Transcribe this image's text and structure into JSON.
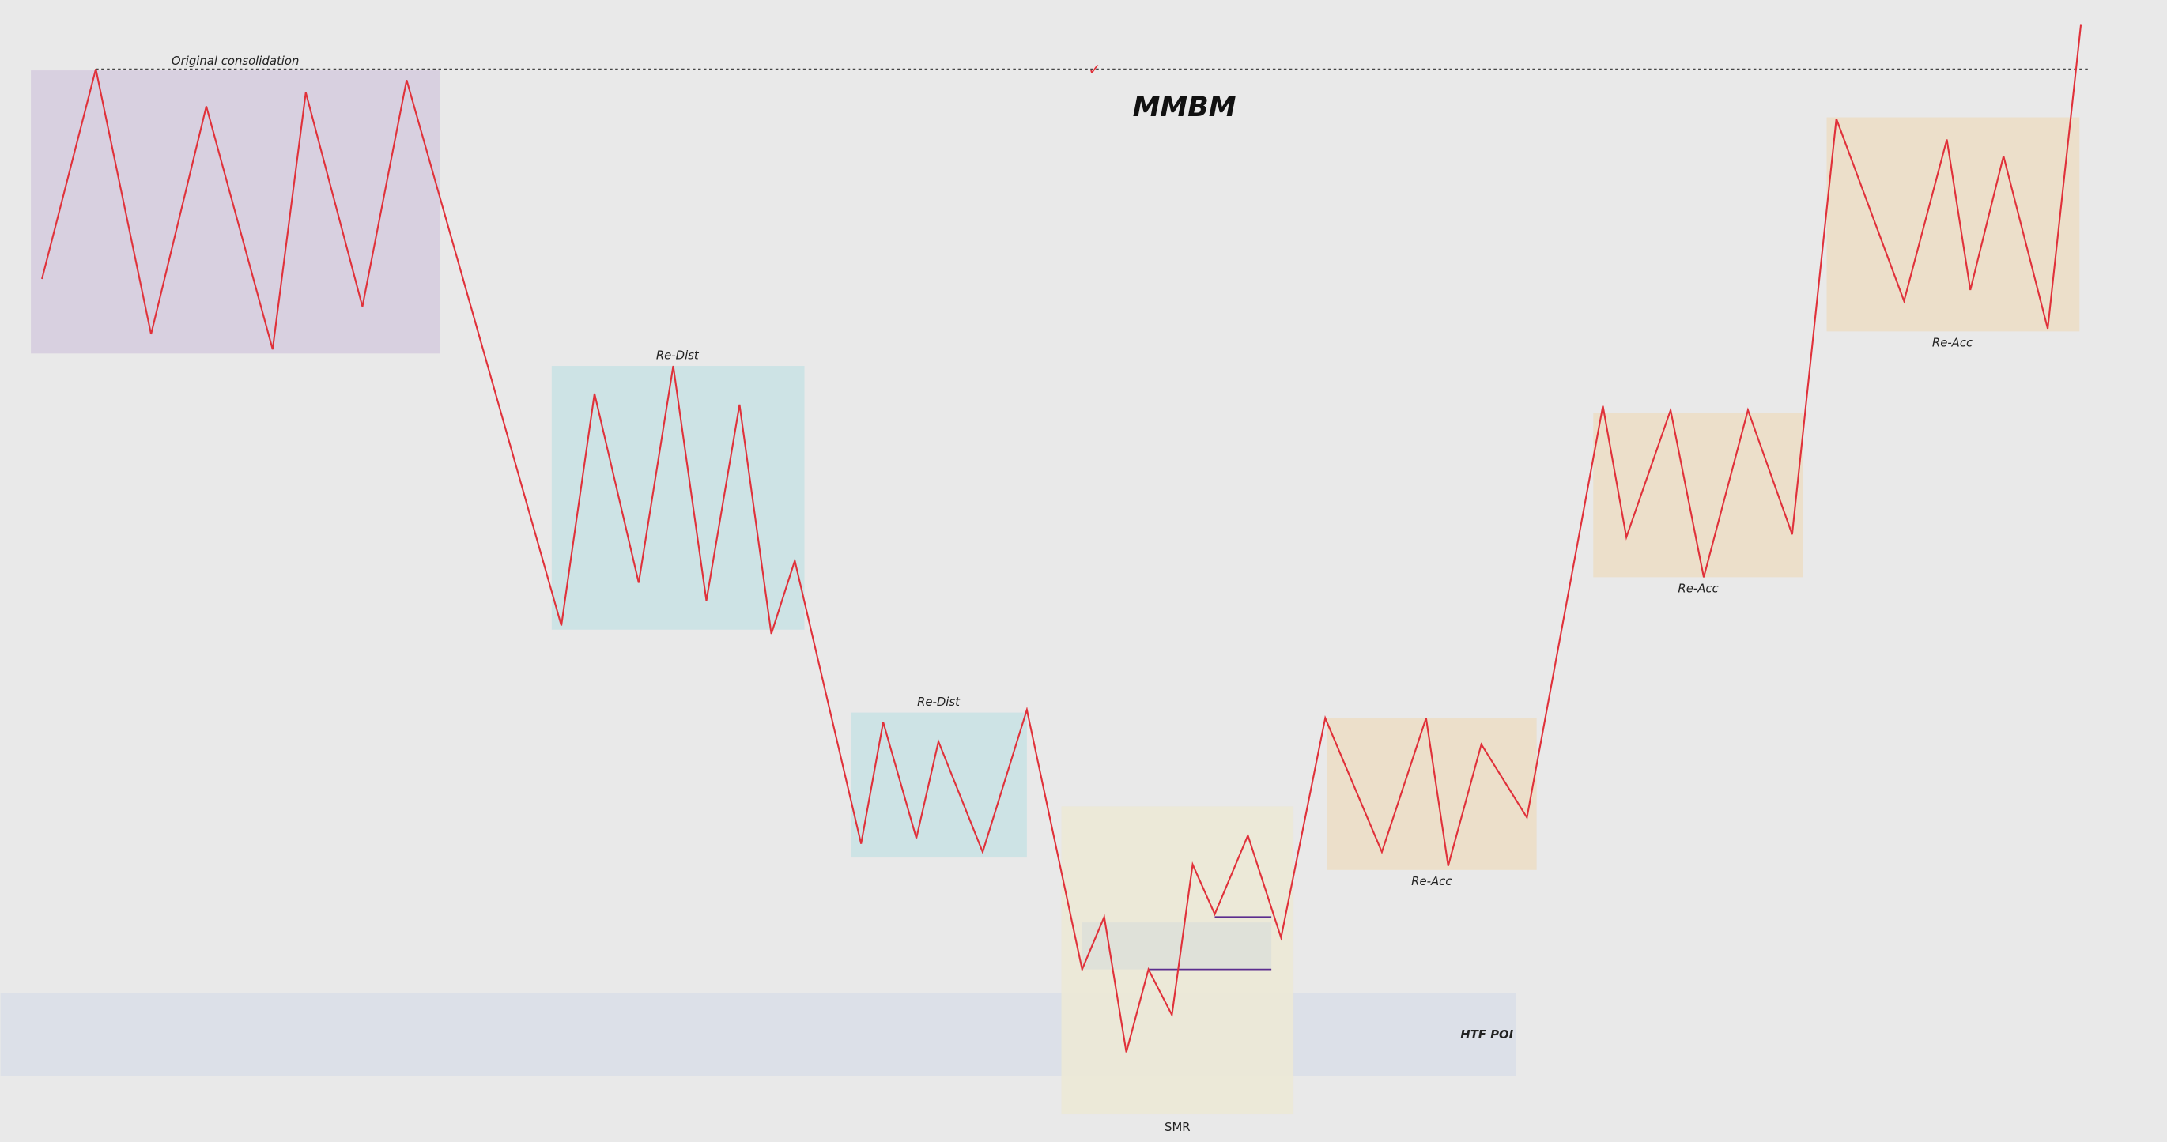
{
  "title": "MMBM",
  "marker": "✓",
  "zones": {
    "original": "Original consolidation",
    "redist_1": "Re-Dist",
    "redist_2": "Re-Dist",
    "smr": "SMR",
    "htf_poi": "HTF POI",
    "reacc_1": "Re-Acc",
    "reacc_2": "Re-Acc",
    "reacc_3": "Re-Acc"
  }
}
